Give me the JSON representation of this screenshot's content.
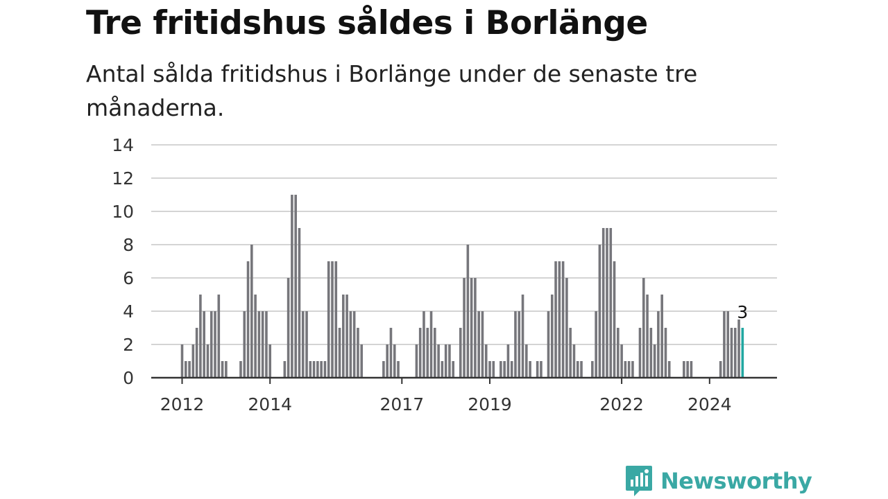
{
  "header": {
    "title": "Tre fritidshus såldes i Borlänge",
    "subtitle": "Antal sålda fritidshus i Borlänge under de senaste tre månaderna."
  },
  "brand": {
    "name": "Newsworthy",
    "icon": "newsworthy-logo-icon",
    "color": "#3aa8a4"
  },
  "colors": {
    "bar": "#76767b",
    "highlight": "#21a7a1",
    "grid": "#d4d4d4"
  },
  "chart_data": {
    "type": "bar",
    "x_start": "2012-01",
    "frequency": "monthly",
    "x_ticks": [
      "2012",
      "2014",
      "2017",
      "2019",
      "2022",
      "2024"
    ],
    "ylim": [
      0,
      14
    ],
    "y_ticks": [
      0,
      2,
      4,
      6,
      8,
      10,
      12,
      14
    ],
    "grid": true,
    "values": [
      2,
      1,
      1,
      2,
      3,
      5,
      4,
      2,
      4,
      4,
      5,
      1,
      1,
      0,
      0,
      0,
      1,
      4,
      7,
      8,
      5,
      4,
      4,
      4,
      2,
      0,
      0,
      0,
      1,
      6,
      11,
      11,
      9,
      4,
      4,
      1,
      1,
      1,
      1,
      1,
      7,
      7,
      7,
      3,
      5,
      5,
      4,
      4,
      3,
      2,
      0,
      0,
      0,
      0,
      0,
      1,
      2,
      3,
      2,
      1,
      0,
      0,
      0,
      0,
      2,
      3,
      4,
      3,
      4,
      3,
      2,
      1,
      2,
      2,
      1,
      0,
      3,
      6,
      8,
      6,
      6,
      4,
      4,
      2,
      1,
      1,
      0,
      1,
      1,
      2,
      1,
      4,
      4,
      5,
      2,
      1,
      0,
      1,
      1,
      0,
      4,
      5,
      7,
      7,
      7,
      6,
      3,
      2,
      1,
      1,
      0,
      0,
      1,
      4,
      8,
      9,
      9,
      9,
      7,
      3,
      2,
      1,
      1,
      1,
      0,
      3,
      6,
      5,
      3,
      2,
      4,
      5,
      3,
      1,
      0,
      0,
      0,
      1,
      1,
      1,
      0,
      0,
      0,
      0,
      0,
      0,
      0,
      1,
      4,
      4,
      3,
      3,
      3.5,
      3
    ],
    "highlight_index": 153,
    "highlight_label": "3"
  }
}
